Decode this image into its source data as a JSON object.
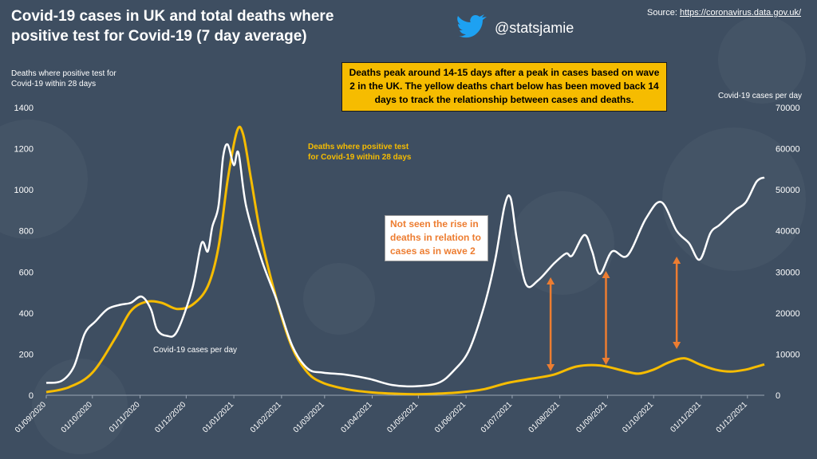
{
  "header": {
    "title": "Covid-19 cases in UK and total deaths where positive test for Covid-19 (7 day average)",
    "source_prefix": "Source: ",
    "source_link": "https://coronavirus.data.gov.uk/",
    "twitter_handle": "@statsjamie"
  },
  "callouts": {
    "yellow_note": "Deaths peak around 14-15 days after a peak in cases based on wave 2 in the UK. The yellow deaths chart below has been moved back 14 days to track the relationship between cases and deaths.",
    "orange_note": "Not seen the rise in deaths in relation to cases as in wave 2"
  },
  "colors": {
    "background": "#3e4e61",
    "deaths_series": "#f6bc00",
    "cases_series": "#ffffff",
    "arrows": "#ed7d31",
    "callout_fill": "#f6bc00"
  },
  "chart_data": {
    "type": "line",
    "title": "Covid-19 cases in UK and total deaths where positive test for Covid-19 (7 day average)",
    "x_tick_labels": [
      "01/09/2020",
      "01/10/2020",
      "01/11/2020",
      "01/12/2020",
      "01/01/2021",
      "01/02/2021",
      "01/03/2021",
      "01/04/2021",
      "01/05/2021",
      "01/06/2021",
      "01/07/2021",
      "01/08/2021",
      "01/09/2021",
      "01/10/2021",
      "01/11/2021",
      "01/12/2021"
    ],
    "xlim_days": [
      0,
      467
    ],
    "y_left": {
      "label": "Deaths where positive test for Covid-19 within 28 days",
      "ylim": [
        0,
        1400
      ],
      "ticks": [
        0,
        200,
        400,
        600,
        800,
        1000,
        1200,
        1400
      ]
    },
    "y_right": {
      "label": "Covid-19 cases per day",
      "ylim": [
        0,
        70000
      ],
      "ticks": [
        0,
        10000,
        20000,
        30000,
        40000,
        50000,
        60000,
        70000
      ]
    },
    "grid": false,
    "series": [
      {
        "name": "Deaths where positive test for Covid-19 within 28 days",
        "axis": "left",
        "days": [
          0,
          15,
          30,
          45,
          55,
          65,
          75,
          85,
          95,
          105,
          112,
          118,
          124,
          128,
          133,
          140,
          150,
          160,
          170,
          180,
          195,
          210,
          225,
          240,
          255,
          270,
          285,
          300,
          315,
          330,
          345,
          360,
          375,
          385,
          395,
          405,
          415,
          425,
          435,
          445,
          455,
          460,
          467
        ],
        "values": [
          15,
          40,
          110,
          280,
          410,
          455,
          450,
          420,
          440,
          530,
          720,
          1050,
          1285,
          1270,
          1060,
          760,
          460,
          230,
          110,
          60,
          30,
          15,
          8,
          5,
          8,
          15,
          30,
          60,
          80,
          100,
          140,
          145,
          120,
          105,
          125,
          160,
          180,
          150,
          125,
          115,
          125,
          135,
          150
        ]
      },
      {
        "name": "Covid-19 cases per day",
        "axis": "right",
        "days": [
          0,
          10,
          18,
          25,
          32,
          40,
          48,
          55,
          62,
          68,
          72,
          78,
          85,
          95,
          101,
          105,
          108,
          112,
          115,
          118,
          122,
          125,
          130,
          140,
          150,
          160,
          170,
          180,
          195,
          210,
          225,
          240,
          255,
          265,
          275,
          285,
          292,
          298,
          302,
          306,
          312,
          320,
          330,
          338,
          342,
          350,
          355,
          360,
          368,
          378,
          390,
          400,
          410,
          418,
          425,
          432,
          438,
          448,
          455,
          462,
          467
        ],
        "values": [
          3000,
          3500,
          7000,
          15000,
          18000,
          21000,
          22000,
          22500,
          24000,
          21000,
          16000,
          14500,
          15500,
          26000,
          37000,
          35000,
          41000,
          46000,
          58000,
          61000,
          56000,
          59000,
          46000,
          33000,
          23000,
          12000,
          6500,
          5500,
          5000,
          4000,
          2500,
          2200,
          3000,
          6000,
          11000,
          22000,
          33000,
          46000,
          48000,
          38000,
          27000,
          28000,
          32000,
          34500,
          34000,
          39000,
          35000,
          29500,
          35000,
          34000,
          43000,
          47000,
          40000,
          37000,
          33000,
          39500,
          41500,
          45000,
          47000,
          52000,
          53000
        ]
      }
    ],
    "annotations": [
      {
        "text": "Deaths where positive test for Covid-19 within 28  days",
        "color": "#f6bc00"
      },
      {
        "text": "Covid-19 cases per day",
        "color": "#ffffff"
      }
    ]
  }
}
